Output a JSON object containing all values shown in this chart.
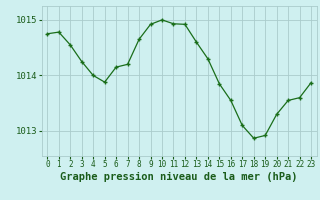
{
  "x": [
    0,
    1,
    2,
    3,
    4,
    5,
    6,
    7,
    8,
    9,
    10,
    11,
    12,
    13,
    14,
    15,
    16,
    17,
    18,
    19,
    20,
    21,
    22,
    23
  ],
  "y": [
    1014.75,
    1014.78,
    1014.55,
    1014.25,
    1014.0,
    1013.88,
    1014.15,
    1014.2,
    1014.65,
    1014.92,
    1015.0,
    1014.93,
    1014.92,
    1014.6,
    1014.3,
    1013.85,
    1013.55,
    1013.1,
    1012.87,
    1012.92,
    1013.3,
    1013.55,
    1013.6,
    1013.87
  ],
  "line_color": "#1a6e1a",
  "marker": "+",
  "marker_size": 3.5,
  "marker_linewidth": 1.0,
  "line_width": 0.9,
  "bg_color": "#cff0f0",
  "grid_color": "#aacccc",
  "tick_color": "#1a5c1a",
  "xlabel": "Graphe pression niveau de la mer (hPa)",
  "xlabel_fontsize": 7.5,
  "tick_fontsize": 5.5,
  "ytick_fontsize": 6.5,
  "yticks": [
    1013,
    1014,
    1015
  ],
  "ylim": [
    1012.55,
    1015.25
  ],
  "xlim": [
    -0.5,
    23.5
  ]
}
